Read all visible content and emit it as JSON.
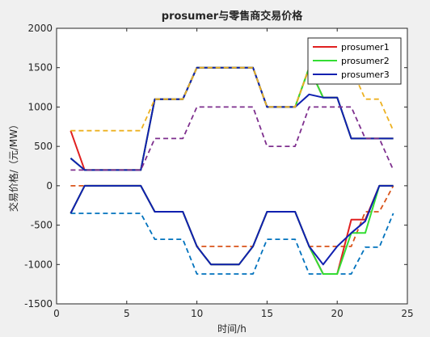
{
  "chart_data": {
    "type": "line",
    "title": "prosumer与零售商交易价格",
    "xlabel": "时间/h",
    "ylabel": "交易价格/（元/MW）",
    "xlim": [
      0,
      25
    ],
    "ylim": [
      -1500,
      2000
    ],
    "xticks": [
      0,
      5,
      10,
      15,
      20,
      25
    ],
    "yticks": [
      -1500,
      -1000,
      -500,
      0,
      500,
      1000,
      1500,
      2000
    ],
    "grid": false,
    "legend_position": "top-right",
    "x": [
      1,
      2,
      3,
      4,
      5,
      6,
      7,
      8,
      9,
      10,
      11,
      12,
      13,
      14,
      15,
      16,
      17,
      18,
      19,
      20,
      21,
      22,
      23,
      24
    ],
    "series": [
      {
        "name": "prosumer1",
        "color": "#e02020",
        "dash": "solid",
        "legend": true,
        "values": [
          700,
          200,
          200,
          200,
          200,
          200,
          1100,
          1100,
          1100,
          1500,
          1500,
          1500,
          1500,
          1500,
          1000,
          1000,
          1000,
          1500,
          1120,
          1120,
          600,
          600,
          600,
          600
        ]
      },
      {
        "name": "prosumer2",
        "color": "#33dd33",
        "dash": "solid",
        "legend": true,
        "values": [
          350,
          200,
          200,
          200,
          200,
          200,
          1100,
          1100,
          1100,
          1500,
          1500,
          1500,
          1500,
          1500,
          1000,
          1000,
          1000,
          1500,
          1120,
          1120,
          600,
          600,
          600,
          600
        ]
      },
      {
        "name": "prosumer3",
        "color": "#1020b0",
        "dash": "solid",
        "legend": true,
        "values": [
          350,
          200,
          200,
          200,
          200,
          200,
          1100,
          1100,
          1100,
          1500,
          1500,
          1500,
          1500,
          1500,
          1000,
          1000,
          1000,
          1160,
          1120,
          1120,
          600,
          600,
          600,
          600
        ]
      },
      {
        "color": "#edb120",
        "dash": "dashed",
        "legend": false,
        "values": [
          700,
          700,
          700,
          700,
          700,
          700,
          1100,
          1100,
          1100,
          1500,
          1500,
          1500,
          1500,
          1500,
          1000,
          1000,
          1000,
          1500,
          1500,
          1500,
          1500,
          1100,
          1100,
          700
        ]
      },
      {
        "color": "#7e2f8e",
        "dash": "dashed",
        "legend": false,
        "values": [
          200,
          200,
          200,
          200,
          200,
          200,
          600,
          600,
          600,
          1000,
          1000,
          1000,
          1000,
          1000,
          500,
          500,
          500,
          1000,
          1000,
          1000,
          1000,
          600,
          600,
          200
        ]
      },
      {
        "color": "#d95319",
        "dash": "dashed",
        "legend": false,
        "values": [
          0,
          0,
          0,
          0,
          0,
          0,
          -330,
          -330,
          -330,
          -770,
          -770,
          -770,
          -770,
          -770,
          -330,
          -330,
          -330,
          -770,
          -770,
          -770,
          -770,
          -330,
          -330,
          0
        ]
      },
      {
        "color": "#0072bd",
        "dash": "dashed",
        "legend": false,
        "values": [
          -350,
          -350,
          -350,
          -350,
          -350,
          -350,
          -680,
          -680,
          -680,
          -1120,
          -1120,
          -1120,
          -1120,
          -1120,
          -680,
          -680,
          -680,
          -1120,
          -1120,
          -1120,
          -1120,
          -780,
          -780,
          -350
        ]
      },
      {
        "color": "#e02020",
        "dash": "solid",
        "legend": false,
        "values": [
          -350,
          0,
          0,
          0,
          0,
          0,
          -330,
          -330,
          -330,
          -770,
          -1000,
          -1000,
          -1000,
          -770,
          -330,
          -330,
          -330,
          -770,
          -1120,
          -1120,
          -430,
          -430,
          0,
          0
        ]
      },
      {
        "color": "#33dd33",
        "dash": "solid",
        "legend": false,
        "values": [
          -350,
          0,
          0,
          0,
          0,
          0,
          -330,
          -330,
          -330,
          -770,
          -1000,
          -1000,
          -1000,
          -770,
          -330,
          -330,
          -330,
          -770,
          -1120,
          -1120,
          -600,
          -600,
          0,
          0
        ]
      },
      {
        "color": "#1020b0",
        "dash": "solid",
        "legend": false,
        "values": [
          -350,
          0,
          0,
          0,
          0,
          0,
          -330,
          -330,
          -330,
          -770,
          -1000,
          -1000,
          -1000,
          -770,
          -330,
          -330,
          -330,
          -770,
          -1000,
          -770,
          -600,
          -450,
          0,
          0
        ]
      }
    ]
  }
}
